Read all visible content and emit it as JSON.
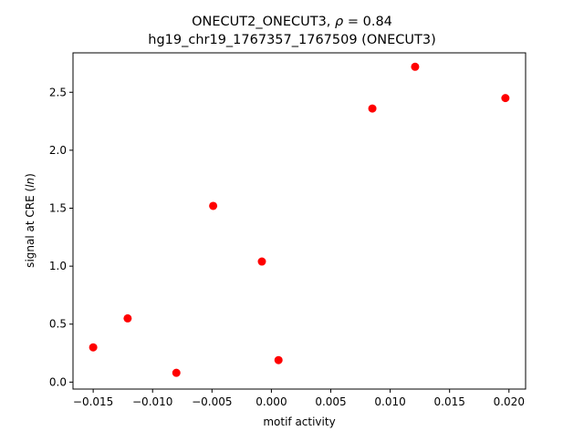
{
  "chart_data": {
    "type": "scatter",
    "title_line1_prefix": "ONECUT2_ONECUT3, ",
    "title_line1_rho": "ρ",
    "title_line1_suffix": " = 0.84",
    "title_line2": "hg19_chr19_1767357_1767509 (ONECUT3)",
    "xlabel": "motif activity",
    "ylabel_prefix": "signal at CRE (",
    "ylabel_italic": "ln",
    "ylabel_suffix": ")",
    "xlim": [
      -0.0167,
      0.0214
    ],
    "ylim": [
      -0.06,
      2.84
    ],
    "x_ticks": [
      -0.015,
      -0.01,
      -0.005,
      0.0,
      0.005,
      0.01,
      0.015,
      0.02
    ],
    "x_tick_labels": [
      "−0.015",
      "−0.010",
      "−0.005",
      "0.000",
      "0.005",
      "0.010",
      "0.015",
      "0.020"
    ],
    "y_ticks": [
      0.0,
      0.5,
      1.0,
      1.5,
      2.0,
      2.5
    ],
    "y_tick_labels": [
      "0.0",
      "0.5",
      "1.0",
      "1.5",
      "2.0",
      "2.5"
    ],
    "grid": false,
    "marker_color": "#ff0000",
    "points": [
      {
        "x": -0.015,
        "y": 0.3
      },
      {
        "x": -0.0121,
        "y": 0.55
      },
      {
        "x": -0.008,
        "y": 0.08
      },
      {
        "x": -0.0049,
        "y": 1.52
      },
      {
        "x": -0.0008,
        "y": 1.04
      },
      {
        "x": 0.0006,
        "y": 0.19
      },
      {
        "x": 0.0085,
        "y": 2.36
      },
      {
        "x": 0.0121,
        "y": 2.72
      },
      {
        "x": 0.0197,
        "y": 2.45
      }
    ]
  }
}
